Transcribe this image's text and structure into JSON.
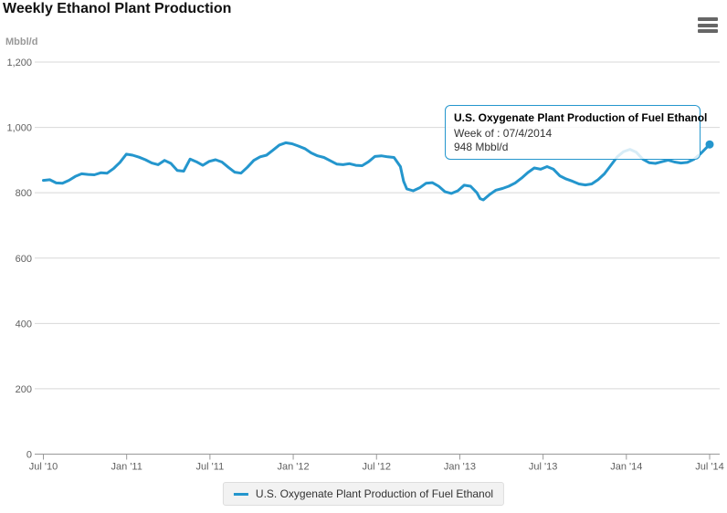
{
  "header": {
    "menu_icon": "hamburger"
  },
  "chart_data": {
    "type": "line",
    "title": "Weekly Ethanol Plant Production",
    "y_axis_title": "Mbbl/d",
    "ylim": [
      0,
      1200
    ],
    "ytick_step": 200,
    "ytick_labels": [
      "0",
      "200",
      "400",
      "600",
      "800",
      "1,000",
      "1,200"
    ],
    "xtick_labels": [
      "Jul '10",
      "Jan '11",
      "Jul '11",
      "Jan '12",
      "Jul '12",
      "Jan '13",
      "Jul '13",
      "Jan '14",
      "Jul '14"
    ],
    "x_unit": "week",
    "x_weeks_total": 209,
    "grid": "horizontal",
    "legend_position": "bottom",
    "series": [
      {
        "name": "U.S. Oxygenate Plant Production of Fuel Ethanol",
        "color": "#2496cd",
        "points": [
          [
            0,
            838
          ],
          [
            2,
            840
          ],
          [
            4,
            830
          ],
          [
            6,
            829
          ],
          [
            8,
            838
          ],
          [
            10,
            850
          ],
          [
            12,
            858
          ],
          [
            14,
            856
          ],
          [
            16,
            855
          ],
          [
            18,
            861
          ],
          [
            20,
            860
          ],
          [
            22,
            874
          ],
          [
            24,
            893
          ],
          [
            26,
            918
          ],
          [
            28,
            915
          ],
          [
            30,
            909
          ],
          [
            32,
            901
          ],
          [
            34,
            891
          ],
          [
            36,
            886
          ],
          [
            38,
            899
          ],
          [
            40,
            890
          ],
          [
            42,
            868
          ],
          [
            44,
            866
          ],
          [
            46,
            903
          ],
          [
            48,
            895
          ],
          [
            50,
            884
          ],
          [
            52,
            896
          ],
          [
            54,
            901
          ],
          [
            56,
            894
          ],
          [
            58,
            878
          ],
          [
            60,
            863
          ],
          [
            62,
            860
          ],
          [
            64,
            878
          ],
          [
            66,
            899
          ],
          [
            68,
            910
          ],
          [
            70,
            915
          ],
          [
            72,
            930
          ],
          [
            74,
            946
          ],
          [
            76,
            953
          ],
          [
            78,
            950
          ],
          [
            80,
            943
          ],
          [
            82,
            935
          ],
          [
            84,
            922
          ],
          [
            86,
            913
          ],
          [
            88,
            908
          ],
          [
            90,
            898
          ],
          [
            92,
            888
          ],
          [
            94,
            886
          ],
          [
            96,
            889
          ],
          [
            98,
            884
          ],
          [
            100,
            883
          ],
          [
            102,
            895
          ],
          [
            104,
            911
          ],
          [
            106,
            913
          ],
          [
            108,
            910
          ],
          [
            110,
            908
          ],
          [
            112,
            880
          ],
          [
            113,
            835
          ],
          [
            114,
            812
          ],
          [
            116,
            806
          ],
          [
            118,
            815
          ],
          [
            120,
            829
          ],
          [
            122,
            831
          ],
          [
            124,
            820
          ],
          [
            126,
            803
          ],
          [
            128,
            798
          ],
          [
            130,
            806
          ],
          [
            132,
            823
          ],
          [
            134,
            820
          ],
          [
            136,
            800
          ],
          [
            137,
            782
          ],
          [
            138,
            778
          ],
          [
            140,
            795
          ],
          [
            142,
            808
          ],
          [
            144,
            813
          ],
          [
            146,
            820
          ],
          [
            148,
            830
          ],
          [
            150,
            845
          ],
          [
            152,
            862
          ],
          [
            154,
            876
          ],
          [
            156,
            872
          ],
          [
            158,
            880
          ],
          [
            160,
            872
          ],
          [
            162,
            852
          ],
          [
            164,
            842
          ],
          [
            166,
            835
          ],
          [
            168,
            827
          ],
          [
            170,
            824
          ],
          [
            172,
            827
          ],
          [
            174,
            840
          ],
          [
            176,
            858
          ],
          [
            178,
            884
          ],
          [
            180,
            910
          ],
          [
            182,
            926
          ],
          [
            184,
            933
          ],
          [
            186,
            924
          ],
          [
            188,
            903
          ],
          [
            190,
            892
          ],
          [
            192,
            890
          ],
          [
            194,
            895
          ],
          [
            196,
            900
          ],
          [
            198,
            894
          ],
          [
            200,
            891
          ],
          [
            202,
            893
          ],
          [
            204,
            902
          ],
          [
            206,
            918
          ],
          [
            208,
            938
          ],
          [
            209,
            948
          ]
        ]
      }
    ],
    "marker": {
      "week": 209,
      "value": 948
    }
  },
  "tooltip": {
    "title": "U.S. Oxygenate Plant Production of Fuel Ethanol",
    "line1": "Week of : 07/4/2014",
    "line2": "948 Mbbl/d"
  },
  "legend": {
    "label": "U.S. Oxygenate Plant Production of Fuel Ethanol"
  },
  "colors": {
    "line": "#2496cd",
    "tooltip_border": "#2496cd",
    "gridline": "#d8d8d8",
    "axis_line": "#999999",
    "axis_text": "#606060"
  }
}
